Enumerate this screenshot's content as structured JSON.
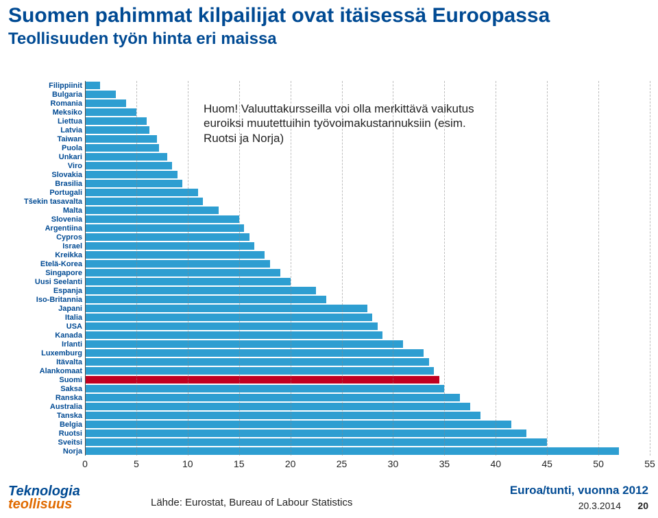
{
  "title": "Suomen pahimmat kilpailijat ovat itäisessä Euroopassa",
  "subtitle": "Teollisuuden työn hinta eri maissa",
  "annotation": {
    "line1": "Huom! Valuuttakursseilla voi olla merkittävä vaikutus",
    "line2": "euroiksi muutettuihin työvoimakustannuksiin (esim.",
    "line3": "Ruotsi ja Norja)"
  },
  "source": "Lähde: Eurostat, Bureau of Labour Statistics",
  "xaxis_label": "Euroa/tunti, vuonna 2012",
  "footer_date": "20.3.2014",
  "footer_page": "20",
  "logo": {
    "line1": "Teknologia",
    "line2": "teollisuus"
  },
  "chart": {
    "type": "bar-horizontal",
    "x_min": 0,
    "x_max": 55,
    "x_ticks": [
      0,
      5,
      10,
      15,
      20,
      25,
      30,
      35,
      40,
      45,
      50,
      55
    ],
    "grid_color": "#888888",
    "bar_color": "#2e9ed1",
    "highlight_color": "#c00020",
    "highlight_country": "Suomi",
    "label_color": "#004A93",
    "label_fontsize": 11,
    "tick_fontsize": 14,
    "background_color": "#ffffff",
    "series": [
      {
        "label": "Filippiinit",
        "value": 1.5
      },
      {
        "label": "Bulgaria",
        "value": 3.0
      },
      {
        "label": "Romania",
        "value": 4.0
      },
      {
        "label": "Meksiko",
        "value": 5.0
      },
      {
        "label": "Liettua",
        "value": 6.0
      },
      {
        "label": "Latvia",
        "value": 6.3
      },
      {
        "label": "Taiwan",
        "value": 7.0
      },
      {
        "label": "Puola",
        "value": 7.2
      },
      {
        "label": "Unkari",
        "value": 8.0
      },
      {
        "label": "Viro",
        "value": 8.5
      },
      {
        "label": "Slovakia",
        "value": 9.0
      },
      {
        "label": "Brasilia",
        "value": 9.5
      },
      {
        "label": "Portugali",
        "value": 11.0
      },
      {
        "label": "Tšekin tasavalta",
        "value": 11.5
      },
      {
        "label": "Malta",
        "value": 13.0
      },
      {
        "label": "Slovenia",
        "value": 15.0
      },
      {
        "label": "Argentiina",
        "value": 15.5
      },
      {
        "label": "Cypros",
        "value": 16.0
      },
      {
        "label": "Israel",
        "value": 16.5
      },
      {
        "label": "Kreikka",
        "value": 17.5
      },
      {
        "label": "Etelä-Korea",
        "value": 18.0
      },
      {
        "label": "Singapore",
        "value": 19.0
      },
      {
        "label": "Uusi Seelanti",
        "value": 20.0
      },
      {
        "label": "Espanja",
        "value": 22.5
      },
      {
        "label": "Iso-Britannia",
        "value": 23.5
      },
      {
        "label": "Japani",
        "value": 27.5
      },
      {
        "label": "Italia",
        "value": 28.0
      },
      {
        "label": "USA",
        "value": 28.5
      },
      {
        "label": "Kanada",
        "value": 29.0
      },
      {
        "label": "Irlanti",
        "value": 31.0
      },
      {
        "label": "Luxemburg",
        "value": 33.0
      },
      {
        "label": "Itävalta",
        "value": 33.5
      },
      {
        "label": "Alankomaat",
        "value": 34.0
      },
      {
        "label": "Suomi",
        "value": 34.5
      },
      {
        "label": "Saksa",
        "value": 35.0
      },
      {
        "label": "Ranska",
        "value": 36.5
      },
      {
        "label": "Australia",
        "value": 37.5
      },
      {
        "label": "Tanska",
        "value": 38.5
      },
      {
        "label": "Belgia",
        "value": 41.5
      },
      {
        "label": "Ruotsi",
        "value": 43.0
      },
      {
        "label": "Sveitsi",
        "value": 45.0
      },
      {
        "label": "Norja",
        "value": 52.0
      }
    ]
  }
}
